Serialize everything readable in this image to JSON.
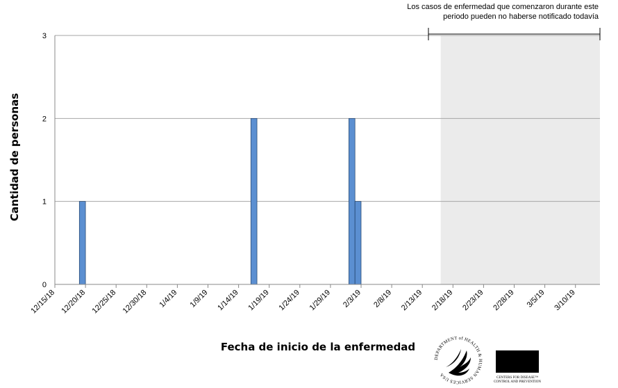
{
  "chart_data": {
    "type": "bar",
    "title": "",
    "xlabel": "Fecha de inicio de la enfermedad",
    "ylabel": "Cantidad de personas",
    "ylim": [
      0,
      3
    ],
    "yticks": [
      0,
      1,
      2,
      3
    ],
    "grid": true,
    "x_start": "12/15/18",
    "x_end": "3/14/19",
    "xtick_labels": [
      "12/15/18",
      "12/20/18",
      "12/25/18",
      "12/30/18",
      "1/4/19",
      "1/9/19",
      "1/14/19",
      "1/19/19",
      "1/24/19",
      "1/29/19",
      "2/3/19",
      "2/8/19",
      "2/13/19",
      "2/18/19",
      "2/23/19",
      "2/28/19",
      "3/5/19",
      "3/10/19"
    ],
    "bars": [
      {
        "x": "12/19/18",
        "value": 1
      },
      {
        "x": "1/16/19",
        "value": 2
      },
      {
        "x": "2/1/19",
        "value": 2
      },
      {
        "x": "2/2/19",
        "value": 1
      }
    ],
    "bar_color": "#5b8fd1",
    "shaded_region": {
      "start": "2/16/19",
      "end": "3/14/19",
      "color": "#ebebeb",
      "annotation_lines": [
        "Los casos de enfermedad que comenzaron durante este",
        "periodo pueden no haberse notificado todavía"
      ]
    }
  },
  "logos": {
    "hhs": {
      "ring_text": "DEPARTMENT of HEALTH & HUMAN SERVICES USA"
    },
    "cdc": {
      "label": "CDC",
      "tagline_1": "CENTERS FOR DISEASE™",
      "tagline_2": "CONTROL AND PREVENTION"
    }
  }
}
